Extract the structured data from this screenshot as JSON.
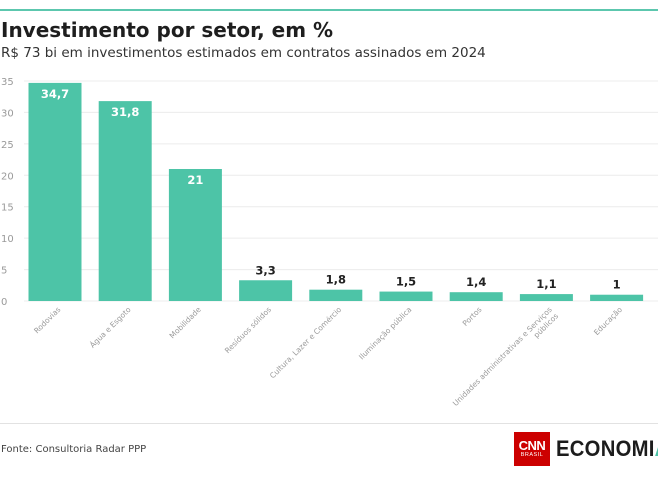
{
  "header": {
    "title": "Investimento por setor, em %",
    "subtitle": "R$ 73 bi em investimentos estimados em contratos assinados em 2024"
  },
  "footer": {
    "source": "Fonte: Consultoria Radar PPP",
    "logo_cnn": "CNN",
    "logo_cnn_sub": "BRASIL",
    "logo_brand": "ECONOMI",
    "logo_brand_accent": "A"
  },
  "colors": {
    "bar": "#4dc4a7",
    "accent_rule": "#5cc7ae",
    "grid": "#ececec",
    "tick": "#9a9a9a",
    "label_inside": "#ffffff",
    "label_outside": "#222222"
  },
  "chart_data": {
    "type": "bar",
    "title": "Investimento por setor, em %",
    "subtitle": "R$ 73 bi em investimentos estimados em contratos assinados em 2024",
    "xlabel": "",
    "ylabel": "",
    "ylim": [
      0,
      35
    ],
    "yticks": [
      0,
      5,
      10,
      15,
      20,
      25,
      30,
      35
    ],
    "grid": true,
    "categories": [
      "Rodovias",
      "Água e Esgoto",
      "Mobilidade",
      "Resíduos sólidos",
      "Cultura, Lazer e Comércio",
      "Iluminação pública",
      "Portos",
      "Unidades administrativas e Serviços públicos",
      "Educação"
    ],
    "values": [
      34.7,
      31.8,
      21,
      3.3,
      1.8,
      1.5,
      1.4,
      1.1,
      1
    ],
    "value_labels": [
      "34,7",
      "31,8",
      "21",
      "3,3",
      "1,8",
      "1,5",
      "1,4",
      "1,1",
      "1"
    ]
  }
}
